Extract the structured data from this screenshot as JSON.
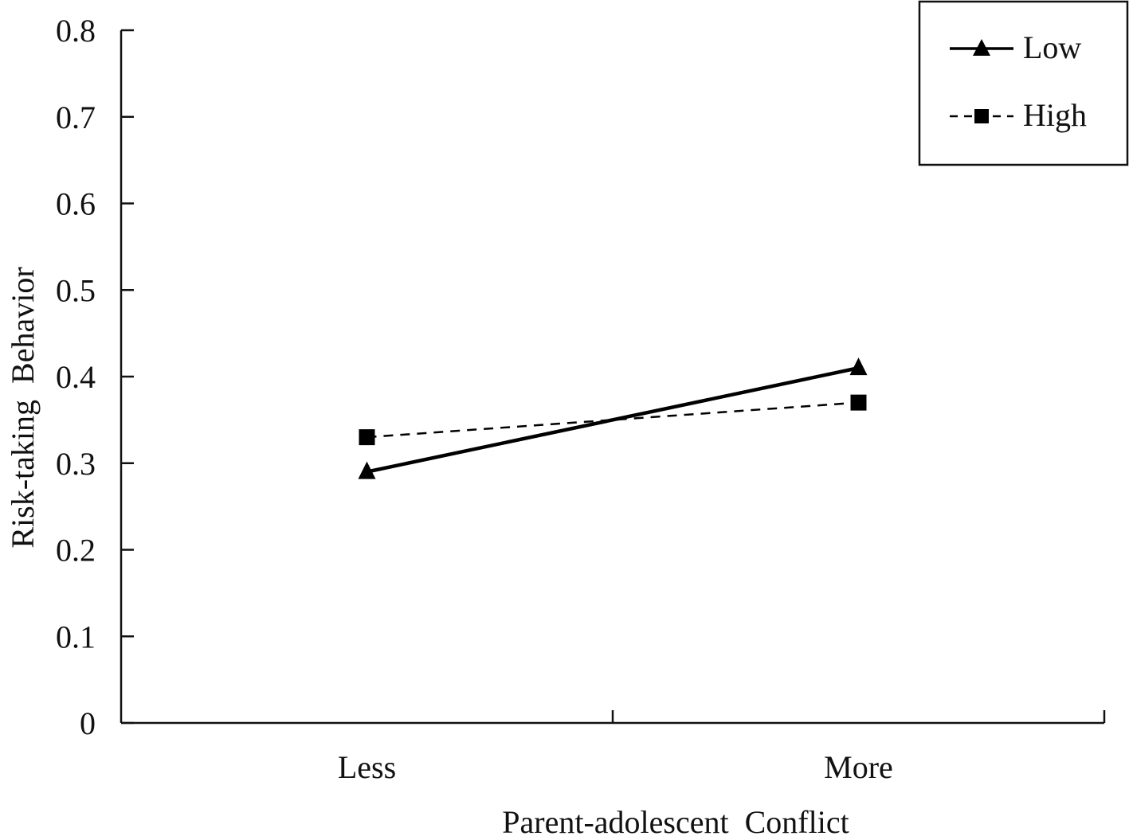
{
  "chart_data": {
    "type": "line",
    "title": "",
    "xlabel": "Parent-adolescent  Conflict",
    "ylabel": "Risk-taking  Behavior",
    "categories": [
      "Less",
      "More"
    ],
    "ylim": [
      0,
      0.8
    ],
    "yticks": [
      "0",
      "0.1",
      "0.2",
      "0.3",
      "0.4",
      "0.5",
      "0.6",
      "0.7",
      "0.8"
    ],
    "grid": false,
    "legend_position": "top-right",
    "series": [
      {
        "name": "Low",
        "values": [
          0.29,
          0.41
        ],
        "marker": "triangle",
        "line": "solid",
        "color": "#000000"
      },
      {
        "name": "High",
        "values": [
          0.33,
          0.37
        ],
        "marker": "square",
        "line": "dashed",
        "color": "#000000"
      }
    ]
  }
}
